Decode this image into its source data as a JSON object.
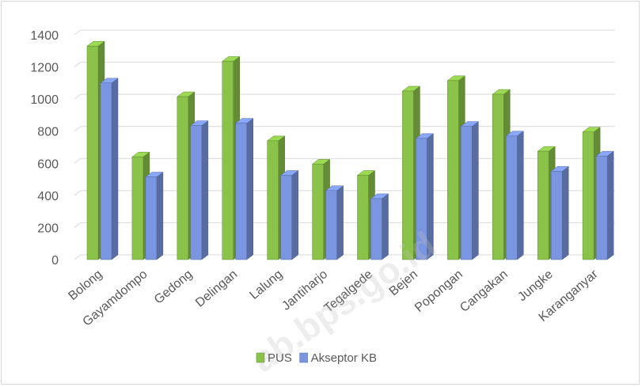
{
  "chart_data": {
    "type": "bar",
    "title": "",
    "xlabel": "",
    "ylabel": "",
    "categories": [
      "Bolong",
      "Gayamdompo",
      "Gedong",
      "Delingan",
      "Lalung",
      "Jantiharjo",
      "Tegalgede",
      "Bejen",
      "Popongan",
      "Cangakan",
      "Jungke",
      "Karanganyar"
    ],
    "series": [
      {
        "name": "PUS",
        "color": "#8bc34a",
        "values": [
          1330,
          640,
          1015,
          1235,
          740,
          595,
          525,
          1050,
          1115,
          1030,
          675,
          795
        ]
      },
      {
        "name": "Akseptor KB",
        "color": "#7b96e0",
        "values": [
          1100,
          515,
          835,
          850,
          525,
          430,
          380,
          755,
          830,
          770,
          550,
          645
        ]
      }
    ],
    "ylim": [
      0,
      1400
    ],
    "yticks": [
      0,
      200,
      400,
      600,
      800,
      1000,
      1200,
      1400
    ],
    "grid": true,
    "legend": "bottom",
    "style": "3d-clustered-column"
  },
  "watermark": "ab.bps.go.id"
}
